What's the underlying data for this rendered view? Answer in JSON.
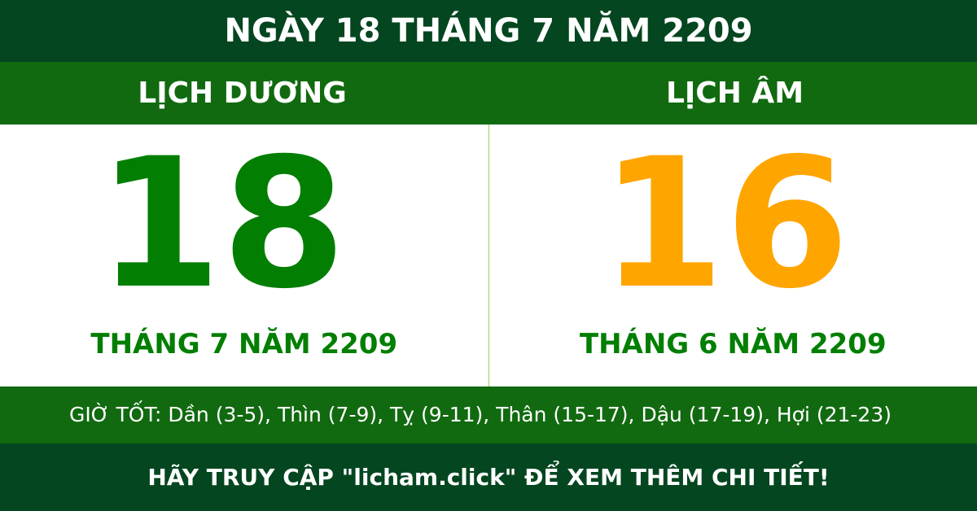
{
  "title": "NGÀY 18 THÁNG 7 NĂM 2209",
  "solar": {
    "label": "LỊCH DƯƠNG",
    "day": "18",
    "month_year": "THÁNG 7 NĂM 2209"
  },
  "lunar": {
    "label": "LỊCH ÂM",
    "day": "16",
    "month_year": "THÁNG 6 NĂM 2209"
  },
  "good_hours": "GIỜ TỐT: Dần (3-5), Thìn (7-9), Tỵ (9-11), Thân (15-17), Dậu (17-19), Hợi (21-23)",
  "footer": "HÃY TRUY CẬP \"licham.click\" ĐỂ XEM THÊM CHI TIẾT!",
  "colors": {
    "dark_green": "#03461f",
    "green": "#116a0f",
    "solar_number": "#027f02",
    "lunar_number": "#ffa500"
  }
}
